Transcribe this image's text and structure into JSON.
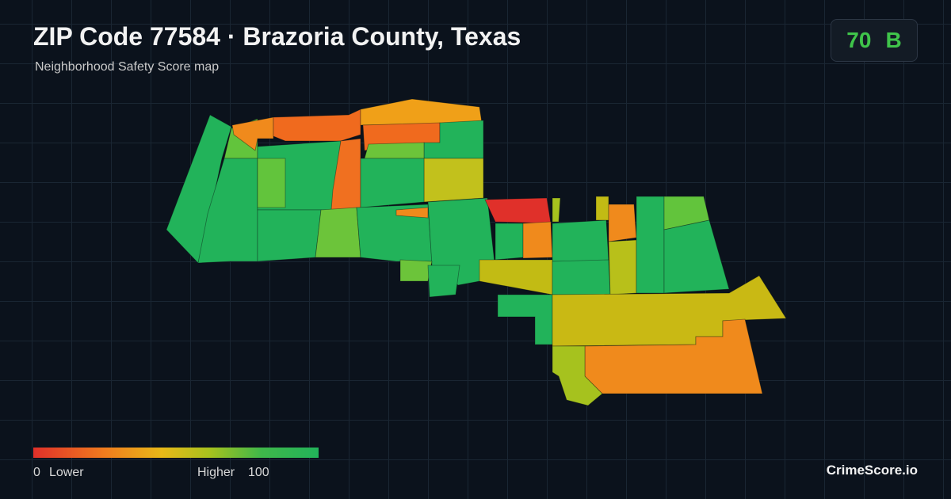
{
  "header": {
    "title": "ZIP Code 77584 · Brazoria County, Texas",
    "subtitle": "Neighborhood Safety Score map"
  },
  "score": {
    "value": 70,
    "grade": "B"
  },
  "legend": {
    "min": 0,
    "min_label": "Lower",
    "max_label": "Higher",
    "max": 100
  },
  "footer": {
    "brand": "CrimeScore.io"
  }
}
